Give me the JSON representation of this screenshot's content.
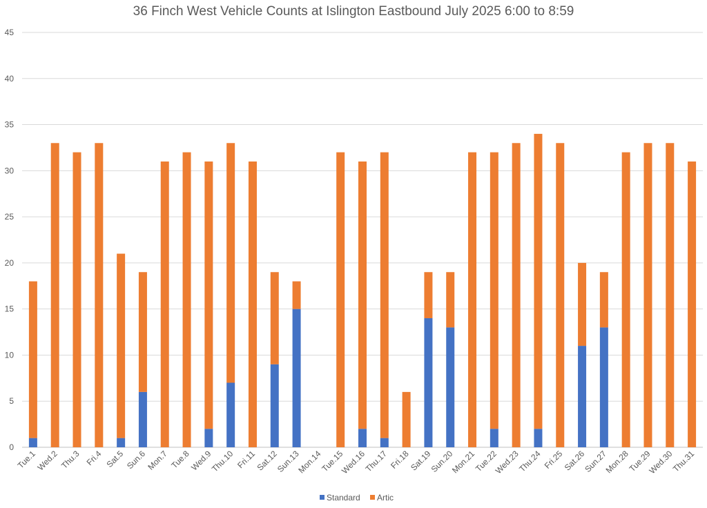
{
  "chart_data": {
    "type": "bar",
    "stacked": true,
    "title": "36 Finch West Vehicle Counts at Islington Eastbound July 2025  6:00 to 8:59",
    "ylim": [
      0,
      45
    ],
    "yticks": [
      0,
      5,
      10,
      15,
      20,
      25,
      30,
      35,
      40,
      45
    ],
    "grid": true,
    "legend_position": "bottom",
    "categories": [
      "Tue.1",
      "Wed.2",
      "Thu.3",
      "Fri.4",
      "Sat.5",
      "Sun.6",
      "Mon.7",
      "Tue.8",
      "Wed.9",
      "Thu.10",
      "Fri.11",
      "Sat.12",
      "Sun.13",
      "Mon.14",
      "Tue.15",
      "Wed.16",
      "Thu.17",
      "Fri.18",
      "Sat.19",
      "Sun.20",
      "Mon.21",
      "Tue.22",
      "Wed.23",
      "Thu.24",
      "Fri.25",
      "Sat.26",
      "Sun.27",
      "Mon.28",
      "Tue.29",
      "Wed.30",
      "Thu.31"
    ],
    "series": [
      {
        "name": "Standard",
        "color": "#4472C4",
        "values": [
          1,
          0,
          0,
          0,
          1,
          6,
          0,
          0,
          2,
          7,
          0,
          9,
          15,
          0,
          0,
          2,
          1,
          0,
          14,
          13,
          0,
          2,
          0,
          2,
          0,
          11,
          13,
          0,
          0,
          0,
          0
        ]
      },
      {
        "name": "Artic",
        "color": "#ED7D31",
        "values": [
          17,
          33,
          32,
          33,
          20,
          13,
          31,
          32,
          29,
          26,
          31,
          10,
          3,
          0,
          32,
          29,
          31,
          6,
          5,
          6,
          32,
          30,
          33,
          32,
          33,
          9,
          6,
          32,
          33,
          33,
          31
        ]
      }
    ]
  }
}
